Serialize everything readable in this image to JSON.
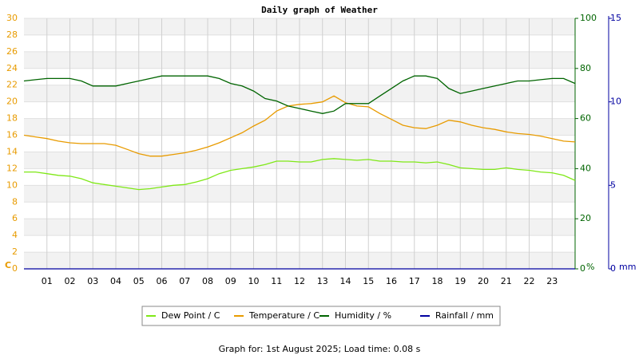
{
  "chart_data": {
    "type": "line",
    "title": "Daily graph of Weather",
    "footer": "Graph for: 1st August 2025; Load time: 0.08 s",
    "x": [
      0,
      0.5,
      1,
      1.5,
      2,
      2.5,
      3,
      3.5,
      4,
      4.5,
      5,
      5.5,
      6,
      6.5,
      7,
      7.5,
      8,
      8.5,
      9,
      9.5,
      10,
      10.5,
      11,
      11.5,
      12,
      12.5,
      13,
      13.5,
      14,
      14.5,
      15,
      15.5,
      16,
      16.5,
      17,
      17.5,
      18,
      18.5,
      19,
      19.5,
      20,
      20.5,
      21,
      21.5,
      22,
      22.5,
      23,
      23.5,
      24
    ],
    "xlim": [
      0,
      24
    ],
    "xticks": [
      {
        "value": 1,
        "label": "01"
      },
      {
        "value": 2,
        "label": "02"
      },
      {
        "value": 3,
        "label": "03"
      },
      {
        "value": 4,
        "label": "04"
      },
      {
        "value": 5,
        "label": "05"
      },
      {
        "value": 6,
        "label": "06"
      },
      {
        "value": 7,
        "label": "07"
      },
      {
        "value": 8,
        "label": "08"
      },
      {
        "value": 9,
        "label": "09"
      },
      10,
      11,
      12,
      13,
      14,
      15,
      16,
      17,
      18,
      19,
      20,
      21,
      22,
      23
    ],
    "ylim": [
      0,
      30
    ],
    "yticks": [
      0,
      2,
      4,
      6,
      8,
      10,
      12,
      14,
      16,
      18,
      20,
      22,
      24,
      26,
      28,
      30
    ],
    "ylabel": "C",
    "y2lim": [
      0,
      100
    ],
    "y2ticks": [
      0,
      20,
      40,
      60,
      80,
      100
    ],
    "y2label": "%",
    "y3lim": [
      0,
      15
    ],
    "y3ticks": [
      0,
      5,
      10,
      15
    ],
    "y3label": "mm",
    "grid": true,
    "series": [
      {
        "name": "Dew Point / C",
        "color": "#7fe817",
        "axis": "y",
        "values": [
          11.6,
          11.6,
          11.4,
          11.2,
          11.1,
          10.8,
          10.3,
          10.1,
          9.9,
          9.7,
          9.5,
          9.6,
          9.8,
          10.0,
          10.1,
          10.4,
          10.8,
          11.4,
          11.8,
          12.0,
          12.2,
          12.5,
          12.9,
          12.9,
          12.8,
          12.8,
          13.1,
          13.2,
          13.1,
          13.0,
          13.1,
          12.9,
          12.9,
          12.8,
          12.8,
          12.7,
          12.8,
          12.5,
          12.1,
          12.0,
          11.9,
          11.9,
          12.1,
          11.9,
          11.8,
          11.6,
          11.5,
          11.2,
          10.6
        ]
      },
      {
        "name": "Temperature / C",
        "color": "#e89b00",
        "axis": "y",
        "values": [
          16.0,
          15.8,
          15.6,
          15.3,
          15.1,
          15.0,
          15.0,
          15.0,
          14.8,
          14.3,
          13.8,
          13.5,
          13.5,
          13.7,
          13.9,
          14.2,
          14.6,
          15.1,
          15.7,
          16.3,
          17.1,
          17.8,
          18.9,
          19.5,
          19.7,
          19.8,
          20.0,
          20.7,
          19.9,
          19.5,
          19.4,
          18.6,
          17.9,
          17.2,
          16.9,
          16.8,
          17.2,
          17.8,
          17.6,
          17.2,
          16.9,
          16.7,
          16.4,
          16.2,
          16.1,
          15.9,
          15.6,
          15.3,
          15.2
        ]
      },
      {
        "name": "Humidity / %",
        "color": "#006400",
        "axis": "y2",
        "values": [
          75,
          75.5,
          76,
          76,
          76,
          75,
          73,
          73,
          73,
          74,
          75,
          76,
          77,
          77,
          77,
          77,
          77,
          76,
          74,
          73,
          71,
          68,
          67,
          65,
          64,
          63,
          62,
          63,
          66,
          66,
          66,
          69,
          72,
          75,
          77,
          77,
          76,
          72,
          70,
          71,
          72,
          73,
          74,
          75,
          75,
          75.5,
          76,
          76,
          74
        ]
      },
      {
        "name": "Rainfall / mm",
        "color": "#0000a0",
        "axis": "y3",
        "values": [
          0,
          0,
          0,
          0,
          0,
          0,
          0,
          0,
          0,
          0,
          0,
          0,
          0,
          0,
          0,
          0,
          0,
          0,
          0,
          0,
          0,
          0,
          0,
          0,
          0,
          0,
          0,
          0,
          0,
          0,
          0,
          0,
          0,
          0,
          0,
          0,
          0,
          0,
          0,
          0,
          0,
          0,
          0,
          0,
          0,
          0,
          0,
          0,
          0
        ]
      }
    ]
  }
}
